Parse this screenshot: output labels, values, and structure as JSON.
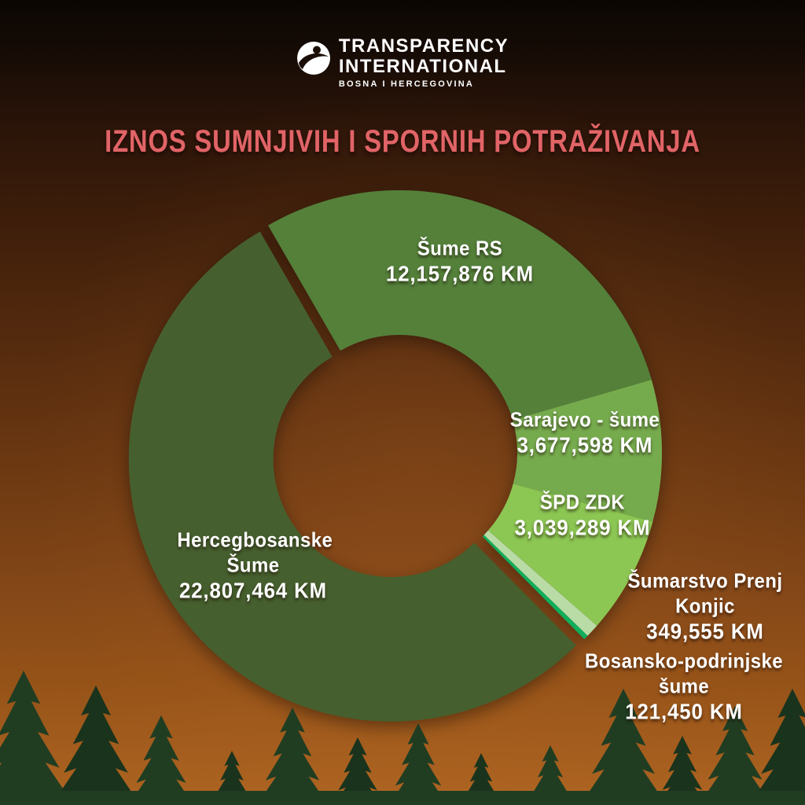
{
  "header": {
    "logo_line1": "TRANSPARENCY",
    "logo_line2": "INTERNATIONAL",
    "logo_line3": "BOSNA I HERCEGOVINA"
  },
  "title": "IZNOS SUMNJIVIH I SPORNIH POTRAŽIVANJA",
  "colors": {
    "title": "#E16467",
    "label_text": "#FFFFFF",
    "background_top": "#0B0603",
    "background_mid": "#603110",
    "background_bottom": "#AF6522",
    "tree": "#203D22",
    "tree_dark": "#1A331C"
  },
  "chart_data": {
    "type": "pie",
    "subtype": "donut",
    "title": "IZNOS SUMNJIVIH I SPORNIH POTRAŽIVANJA",
    "unit": "KM",
    "start_angle_deg": -30,
    "legend_position": "on-slices",
    "segments": [
      {
        "label": "Šume RS",
        "value": 12157876,
        "value_display": "12,157,876 KM",
        "color": "#54803A",
        "exploded": false
      },
      {
        "label": "Sarajevo - šume",
        "value": 3677598,
        "value_display": "3,677,598 KM",
        "color": "#76AB4D",
        "exploded": false
      },
      {
        "label": "ŠPD ZDK",
        "value": 3039289,
        "value_display": "3,039,289 KM",
        "color": "#8CC653",
        "exploded": false
      },
      {
        "label": "Šumarstvo Prenj Konjic",
        "value": 349555,
        "value_display": "349,555 KM",
        "color": "#B9DBA6",
        "exploded": false
      },
      {
        "label": "Bosansko-podrinjske šume",
        "value": 121450,
        "value_display": "121,450 KM",
        "color": "#0FAE5B",
        "exploded": false
      },
      {
        "label": "Hercegbosanske Šume",
        "value": 22807464,
        "value_display": "22,807,464 KM",
        "color": "#465F2E",
        "exploded": true
      }
    ]
  }
}
